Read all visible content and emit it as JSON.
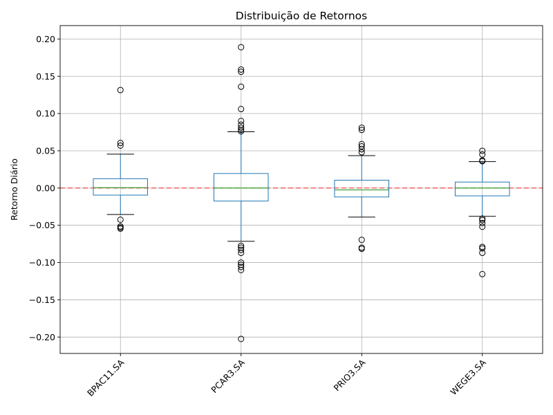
{
  "chart_data": {
    "type": "box",
    "title": "Distribuição de Retornos",
    "xlabel": "",
    "ylabel": "Retorno Diário",
    "ylim": [
      -0.222,
      0.218
    ],
    "yticks": [
      -0.2,
      -0.15,
      -0.1,
      -0.05,
      0.0,
      0.05,
      0.1,
      0.15,
      0.2
    ],
    "ytick_labels": [
      "−0.20",
      "−0.15",
      "−0.10",
      "−0.05",
      "0.00",
      "0.05",
      "0.10",
      "0.15",
      "0.20"
    ],
    "grid": true,
    "reference_line": {
      "y": 0.0,
      "style": "dashed",
      "color": "#ff0000"
    },
    "categories": [
      "BPAC11.SA",
      "PCAR3.SA",
      "PRIO3.SA",
      "WEGE3.SA"
    ],
    "boxes": [
      {
        "name": "BPAC11.SA",
        "q1": -0.0095,
        "median": 0.0005,
        "q3": 0.0125,
        "whisker_low": -0.0355,
        "whisker_high": 0.0455,
        "outliers": [
          0.1315,
          0.0605,
          0.057,
          -0.0425,
          -0.0515,
          -0.053,
          -0.0545
        ]
      },
      {
        "name": "PCAR3.SA",
        "q1": -0.0175,
        "median": 0.0,
        "q3": 0.0195,
        "whisker_low": -0.0715,
        "whisker_high": 0.0755,
        "outliers": [
          0.189,
          0.159,
          0.156,
          0.136,
          0.106,
          0.09,
          0.085,
          0.081,
          0.078,
          0.076,
          -0.0775,
          -0.08,
          -0.083,
          -0.087,
          -0.1,
          -0.103,
          -0.106,
          -0.11,
          -0.2025
        ]
      },
      {
        "name": "PRIO3.SA",
        "q1": -0.012,
        "median": -0.0025,
        "q3": 0.0105,
        "whisker_low": -0.039,
        "whisker_high": 0.0435,
        "outliers": [
          0.081,
          0.078,
          0.059,
          0.056,
          0.052,
          0.048,
          -0.0695,
          -0.08,
          -0.0815
        ]
      },
      {
        "name": "WEGE3.SA",
        "q1": -0.0105,
        "median": 0.0,
        "q3": 0.008,
        "whisker_low": -0.038,
        "whisker_high": 0.0355,
        "outliers": [
          0.05,
          0.045,
          0.037,
          0.036,
          -0.041,
          -0.043,
          -0.047,
          -0.052,
          -0.079,
          -0.081,
          -0.087,
          -0.1155
        ]
      }
    ],
    "colors": {
      "box": "#1f77b4",
      "median": "#2ca02c",
      "whisker_cap": "#000000",
      "outlier": "#000000",
      "grid": "#b0b0b0",
      "reference_line": "#ff0000"
    }
  }
}
